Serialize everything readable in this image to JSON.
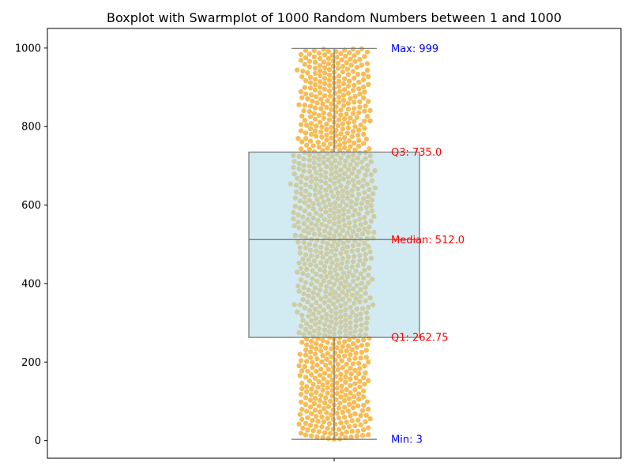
{
  "chart_data": {
    "type": "box+swarm",
    "title": "Boxplot with Swarmplot of 1000 Random Numbers between 1 and 1000",
    "xlabel": "",
    "ylabel": "",
    "ylim": [
      -45,
      1050
    ],
    "yticks": [
      0,
      200,
      400,
      600,
      800,
      1000
    ],
    "n": 1000,
    "stats": {
      "min": 3,
      "q1": 262.75,
      "median": 512.0,
      "q3": 735.0,
      "max": 999
    },
    "box_color": "#add8e6",
    "box_edge_color": "#707070",
    "point_color": "#f5b03a",
    "annotations": [
      {
        "key": "max",
        "text": "Max: 999",
        "value": 999,
        "color": "#0000ff"
      },
      {
        "key": "q3",
        "text": "Q3: 735.0",
        "value": 735.0,
        "color": "#ff0000"
      },
      {
        "key": "median",
        "text": "Median: 512.0",
        "value": 512.0,
        "color": "#ff0000"
      },
      {
        "key": "q1",
        "text": "Q1: 262.75",
        "value": 262.75,
        "color": "#ff0000"
      },
      {
        "key": "min",
        "text": "Min: 3",
        "value": 3,
        "color": "#0000ff"
      }
    ]
  }
}
